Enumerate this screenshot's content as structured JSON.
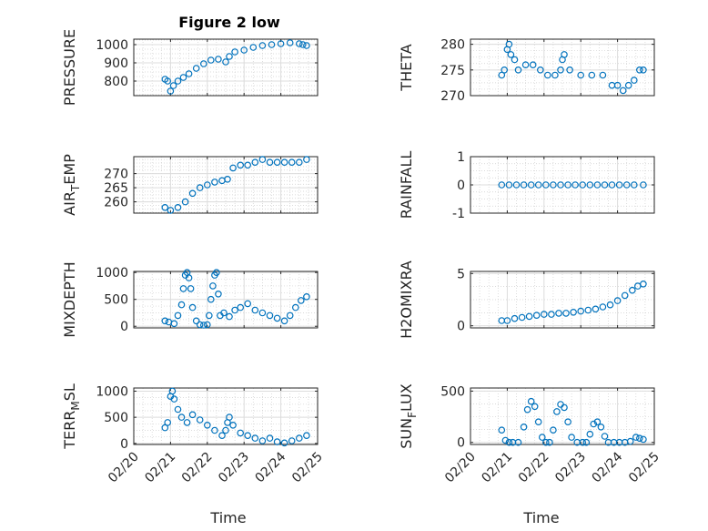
{
  "figure": {
    "title": "Figure 2 low",
    "xlabel": "Time"
  },
  "chart_data": [
    {
      "type": "scatter",
      "id": "pressure",
      "col": 0,
      "row": 0,
      "ylabel": "PRESSURE",
      "ylim": [
        720,
        1030
      ],
      "yticks": [
        800,
        900,
        1000
      ],
      "xlim": [
        0,
        5
      ],
      "xticks": [
        "02/20",
        "02/21",
        "02/22",
        "02/23",
        "02/24",
        "02/25"
      ],
      "show_xticks": false,
      "x": [
        0.85,
        0.92,
        1.0,
        1.08,
        1.2,
        1.35,
        1.5,
        1.7,
        1.9,
        2.1,
        2.3,
        2.5,
        2.6,
        2.75,
        3.0,
        3.25,
        3.5,
        3.75,
        4.0,
        4.25,
        4.5,
        4.6,
        4.7
      ],
      "y": [
        810,
        800,
        745,
        775,
        800,
        820,
        840,
        870,
        895,
        915,
        920,
        905,
        935,
        960,
        970,
        985,
        995,
        1000,
        1005,
        1010,
        1005,
        1000,
        995
      ]
    },
    {
      "type": "scatter",
      "id": "theta",
      "col": 1,
      "row": 0,
      "ylabel": "THETA",
      "ylim": [
        270,
        281
      ],
      "yticks": [
        270,
        275,
        280
      ],
      "xlim": [
        0,
        5
      ],
      "xticks": [
        "02/20",
        "02/21",
        "02/22",
        "02/23",
        "02/24",
        "02/25"
      ],
      "show_xticks": false,
      "x": [
        0.85,
        0.92,
        1.0,
        1.05,
        1.1,
        1.2,
        1.3,
        1.5,
        1.7,
        1.9,
        2.1,
        2.3,
        2.45,
        2.5,
        2.55,
        2.7,
        3.0,
        3.3,
        3.6,
        3.85,
        4.0,
        4.15,
        4.3,
        4.45,
        4.6,
        4.7
      ],
      "y": [
        274,
        275,
        279,
        280,
        278,
        277,
        275,
        276,
        276,
        275,
        274,
        274,
        275,
        277,
        278,
        275,
        274,
        274,
        274,
        272,
        272,
        271,
        272,
        273,
        275,
        275
      ]
    },
    {
      "type": "scatter",
      "id": "air_temp",
      "col": 0,
      "row": 1,
      "ylabel": "AIR_TEMP",
      "ylim": [
        256,
        276
      ],
      "yticks": [
        260,
        265,
        270
      ],
      "xlim": [
        0,
        5
      ],
      "xticks": [
        "02/20",
        "02/21",
        "02/22",
        "02/23",
        "02/24",
        "02/25"
      ],
      "show_xticks": false,
      "x": [
        0.85,
        1.0,
        1.2,
        1.4,
        1.6,
        1.8,
        2.0,
        2.2,
        2.4,
        2.55,
        2.7,
        2.9,
        3.1,
        3.3,
        3.5,
        3.7,
        3.9,
        4.1,
        4.3,
        4.5,
        4.7
      ],
      "y": [
        258,
        257,
        258,
        260,
        263,
        265,
        266,
        267,
        267.5,
        268,
        272,
        273,
        273,
        274,
        275,
        274,
        274,
        274,
        274,
        274,
        275
      ]
    },
    {
      "type": "scatter",
      "id": "rainfall",
      "col": 1,
      "row": 1,
      "ylabel": "RAINFALL",
      "ylim": [
        -1,
        1
      ],
      "yticks": [
        -1,
        0,
        1
      ],
      "xlim": [
        0,
        5
      ],
      "xticks": [
        "02/20",
        "02/21",
        "02/22",
        "02/23",
        "02/24",
        "02/25"
      ],
      "show_xticks": false,
      "x": [
        0.85,
        1.05,
        1.25,
        1.45,
        1.65,
        1.85,
        2.05,
        2.25,
        2.45,
        2.65,
        2.85,
        3.05,
        3.25,
        3.45,
        3.65,
        3.85,
        4.05,
        4.25,
        4.45,
        4.7
      ],
      "y": [
        0,
        0,
        0,
        0,
        0,
        0,
        0,
        0,
        0,
        0,
        0,
        0,
        0,
        0,
        0,
        0,
        0,
        0,
        0,
        0
      ]
    },
    {
      "type": "scatter",
      "id": "mixdepth",
      "col": 0,
      "row": 2,
      "ylabel": "MIXDEPTH",
      "ylim": [
        -30,
        1020
      ],
      "yticks": [
        0,
        500,
        1000
      ],
      "xlim": [
        0,
        5
      ],
      "xticks": [
        "02/20",
        "02/21",
        "02/22",
        "02/23",
        "02/24",
        "02/25"
      ],
      "show_xticks": false,
      "x": [
        0.85,
        0.95,
        1.1,
        1.2,
        1.3,
        1.35,
        1.4,
        1.45,
        1.5,
        1.55,
        1.6,
        1.7,
        1.8,
        1.9,
        2.0,
        2.05,
        2.1,
        2.15,
        2.2,
        2.25,
        2.3,
        2.35,
        2.45,
        2.6,
        2.75,
        2.9,
        3.1,
        3.3,
        3.5,
        3.7,
        3.9,
        4.1,
        4.25,
        4.4,
        4.55,
        4.7
      ],
      "y": [
        100,
        80,
        50,
        200,
        400,
        700,
        950,
        1000,
        900,
        700,
        350,
        100,
        30,
        20,
        30,
        200,
        500,
        750,
        950,
        1000,
        600,
        200,
        250,
        180,
        300,
        350,
        420,
        300,
        250,
        200,
        150,
        100,
        200,
        350,
        480,
        550
      ]
    },
    {
      "type": "scatter",
      "id": "h2omixra",
      "col": 1,
      "row": 2,
      "ylabel": "H2OMIXRA",
      "ylim": [
        -0.2,
        5.2
      ],
      "yticks": [
        0,
        5
      ],
      "xlim": [
        0,
        5
      ],
      "xticks": [
        "02/20",
        "02/21",
        "02/22",
        "02/23",
        "02/24",
        "02/25"
      ],
      "show_xticks": false,
      "x": [
        0.85,
        1.0,
        1.2,
        1.4,
        1.6,
        1.8,
        2.0,
        2.2,
        2.4,
        2.6,
        2.8,
        3.0,
        3.2,
        3.4,
        3.6,
        3.8,
        4.0,
        4.2,
        4.4,
        4.55,
        4.7
      ],
      "y": [
        0.5,
        0.5,
        0.7,
        0.8,
        0.9,
        1.0,
        1.1,
        1.1,
        1.2,
        1.2,
        1.3,
        1.4,
        1.5,
        1.6,
        1.8,
        2.0,
        2.4,
        2.9,
        3.4,
        3.8,
        4.0
      ]
    },
    {
      "type": "scatter",
      "id": "terr_msl",
      "col": 0,
      "row": 3,
      "ylabel": "TERR_MSL",
      "ylim": [
        -20,
        1060
      ],
      "yticks": [
        0,
        500,
        1000
      ],
      "xlim": [
        0,
        5
      ],
      "xticks": [
        "02/20",
        "02/21",
        "02/22",
        "02/23",
        "02/24",
        "02/25"
      ],
      "show_xticks": true,
      "x": [
        0.85,
        0.92,
        1.0,
        1.05,
        1.1,
        1.2,
        1.3,
        1.45,
        1.6,
        1.8,
        2.0,
        2.2,
        2.4,
        2.5,
        2.55,
        2.6,
        2.7,
        2.9,
        3.1,
        3.3,
        3.5,
        3.7,
        3.9,
        4.1,
        4.3,
        4.5,
        4.7
      ],
      "y": [
        300,
        400,
        900,
        1000,
        850,
        650,
        500,
        400,
        550,
        450,
        350,
        250,
        150,
        250,
        400,
        500,
        350,
        200,
        150,
        100,
        50,
        100,
        30,
        10,
        50,
        100,
        150
      ]
    },
    {
      "type": "scatter",
      "id": "sun_flux",
      "col": 1,
      "row": 3,
      "ylabel": "SUN_FLUX",
      "ylim": [
        -20,
        530
      ],
      "yticks": [
        0,
        500
      ],
      "xlim": [
        0,
        5
      ],
      "xticks": [
        "02/20",
        "02/21",
        "02/22",
        "02/23",
        "02/24",
        "02/25"
      ],
      "show_xticks": true,
      "x": [
        0.85,
        0.95,
        1.05,
        1.15,
        1.3,
        1.45,
        1.55,
        1.65,
        1.75,
        1.85,
        1.95,
        2.05,
        2.15,
        2.25,
        2.35,
        2.45,
        2.55,
        2.65,
        2.75,
        2.9,
        3.05,
        3.15,
        3.25,
        3.35,
        3.45,
        3.55,
        3.65,
        3.75,
        3.9,
        4.05,
        4.2,
        4.35,
        4.5,
        4.6,
        4.7
      ],
      "y": [
        120,
        20,
        0,
        0,
        0,
        150,
        320,
        400,
        350,
        200,
        50,
        0,
        0,
        120,
        300,
        370,
        340,
        200,
        50,
        0,
        0,
        0,
        80,
        180,
        200,
        150,
        60,
        0,
        0,
        0,
        0,
        10,
        50,
        40,
        30
      ]
    }
  ],
  "colors": {
    "marker": "#0072BD",
    "axis": "#262626"
  }
}
